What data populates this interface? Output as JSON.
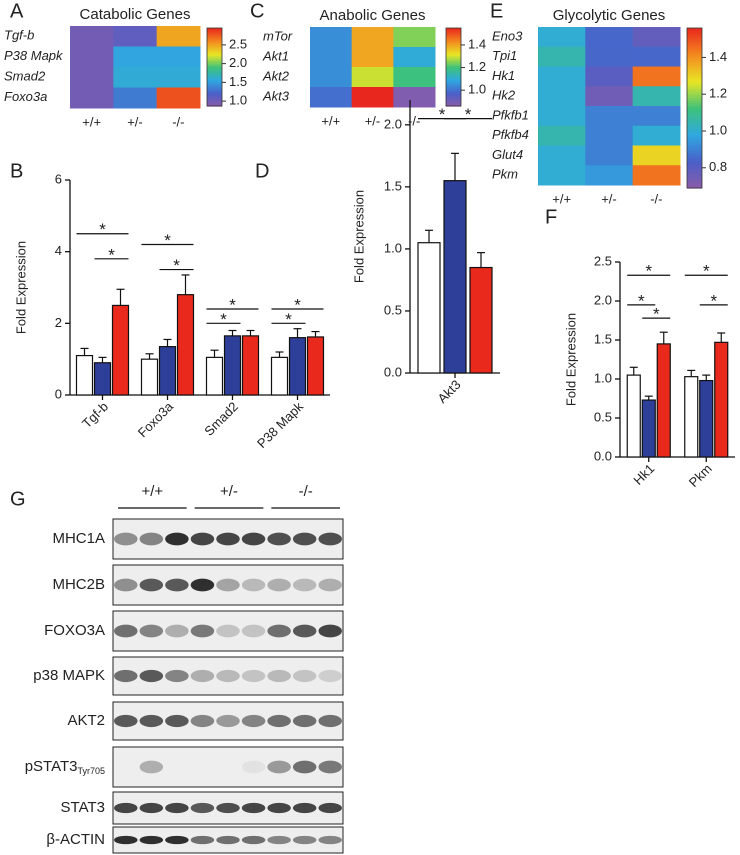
{
  "chart_data": [
    {
      "type": "heatmap",
      "label": "A",
      "title": "Catabolic Genes",
      "rows": [
        "Tgf-b",
        "P38 Mapk",
        "Smad2",
        "Foxo3a"
      ],
      "columns": [
        "+/+",
        "+/-",
        "-/-"
      ],
      "values": [
        [
          1.0,
          1.1,
          2.5
        ],
        [
          1.0,
          1.55,
          1.55
        ],
        [
          1.0,
          1.6,
          1.6
        ],
        [
          1.0,
          1.35,
          2.8
        ]
      ],
      "zlim": [
        0.87,
        2.95
      ],
      "zticks": [
        {
          "value": 1,
          "label": "1.0"
        },
        1.5,
        {
          "value": 2,
          "label": "2.0"
        },
        2.5
      ],
      "colorscale": [
        "#8b5ca8",
        "#4a5fc9",
        "#2fa8e0",
        "#3ec27a",
        "#e8e624",
        "#f48a1f",
        "#e8281e"
      ]
    },
    {
      "type": "heatmap",
      "label": "C",
      "title": "Anabolic Genes",
      "rows": [
        "mTor",
        "Akt1",
        "Akt2",
        "Akt3"
      ],
      "columns": [
        "+/+",
        "+/-",
        "-/-"
      ],
      "values": [
        [
          1.05,
          1.4,
          1.25
        ],
        [
          1.05,
          1.4,
          1.1
        ],
        [
          1.05,
          1.3,
          1.2
        ],
        [
          1.0,
          1.55,
          0.88
        ]
      ],
      "zlim": [
        0.86,
        1.55
      ],
      "zticks": [
        {
          "value": 1,
          "label": "1.0"
        },
        1.2,
        1.4
      ],
      "colorscale": [
        "#8b5ca8",
        "#4a5fc9",
        "#2fa8e0",
        "#3ec27a",
        "#e8e624",
        "#f48a1f",
        "#e8281e"
      ]
    },
    {
      "type": "heatmap",
      "label": "E",
      "title": "Glycolytic Genes",
      "rows": [
        "Eno3",
        "Tpi1",
        "Hk1",
        "Hk2",
        "Pfkfb1",
        "Pfkfb4",
        "Glut4",
        "Pkm"
      ],
      "columns": [
        "+/+",
        "+/-",
        "-/-"
      ],
      "values": [
        [
          1.0,
          0.85,
          0.78
        ],
        [
          1.05,
          0.85,
          0.85
        ],
        [
          1.0,
          0.8,
          1.45
        ],
        [
          1.0,
          0.75,
          1.05
        ],
        [
          1.0,
          0.9,
          0.9
        ],
        [
          1.05,
          0.9,
          1.0
        ],
        [
          1.0,
          0.9,
          1.3
        ],
        [
          1.0,
          0.95,
          1.45
        ]
      ],
      "zlim": [
        0.69,
        1.56
      ],
      "zticks": [
        0.8,
        {
          "value": 1,
          "label": "1.0"
        },
        1.2,
        1.4
      ],
      "colorscale": [
        "#8b5ca8",
        "#4a5fc9",
        "#2fa8e0",
        "#3ec27a",
        "#e8e624",
        "#f48a1f",
        "#e8281e"
      ]
    },
    {
      "type": "bar",
      "label": "B",
      "ylabel": "Fold Expression",
      "categories": [
        "Tgf-b",
        "Foxo3a",
        "Smad2",
        "P38 Mapk"
      ],
      "series": [
        {
          "color": "#ffffff",
          "values": [
            1.1,
            1.0,
            1.05,
            1.05
          ],
          "errors": [
            0.2,
            0.15,
            0.2,
            0.15
          ]
        },
        {
          "color": "#2e3f99",
          "values": [
            0.9,
            1.35,
            1.65,
            1.6
          ],
          "errors": [
            0.15,
            0.2,
            0.15,
            0.25
          ]
        },
        {
          "color": "#e8291c",
          "values": [
            2.5,
            2.8,
            1.65,
            1.62
          ],
          "errors": [
            0.45,
            0.55,
            0.15,
            0.15
          ]
        }
      ],
      "ylim": [
        0,
        6
      ],
      "yticks": [
        0,
        2,
        4,
        6
      ],
      "brackets": [
        {
          "category": 0,
          "from": 0,
          "to": 2,
          "y": 4.5,
          "label": "*"
        },
        {
          "category": 0,
          "from": 1,
          "to": 2,
          "y": 3.8,
          "label": "*"
        },
        {
          "category": 1,
          "from": 0,
          "to": 2,
          "y": 4.2,
          "label": "*"
        },
        {
          "category": 1,
          "from": 1,
          "to": 2,
          "y": 3.5,
          "label": "*"
        },
        {
          "category": 2,
          "from": 0,
          "to": 2,
          "y": 2.4,
          "label": "*"
        },
        {
          "category": 2,
          "from": 0,
          "to": 1,
          "y": 2.0,
          "label": "*"
        },
        {
          "category": 3,
          "from": 0,
          "to": 2,
          "y": 2.4,
          "label": "*"
        },
        {
          "category": 3,
          "from": 0,
          "to": 1,
          "y": 2.0,
          "label": "*"
        }
      ]
    },
    {
      "type": "bar",
      "label": "D",
      "ylabel": "Fold Expression",
      "categories": [
        "Akt3"
      ],
      "series": [
        {
          "color": "#ffffff",
          "values": [
            1.05
          ],
          "errors": [
            0.1
          ]
        },
        {
          "color": "#2e3f99",
          "values": [
            1.55
          ],
          "errors": [
            0.22
          ]
        },
        {
          "color": "#e8291c",
          "values": [
            0.85
          ],
          "errors": [
            0.12
          ]
        }
      ],
      "ylim": [
        0,
        2.2
      ],
      "yticks": [
        {
          "value": 0,
          "label": "0.0"
        },
        0.5,
        {
          "value": 1,
          "label": "1.0"
        },
        1.5,
        {
          "value": 2,
          "label": "2.0"
        }
      ],
      "brackets": [
        {
          "category": 0,
          "from": 0,
          "to": 1,
          "y": 2.05,
          "label": "*"
        },
        {
          "category": 0,
          "from": 1,
          "to": 2,
          "y": 2.05,
          "label": "*"
        }
      ]
    },
    {
      "type": "bar",
      "label": "F",
      "ylabel": "Fold Expression",
      "categories": [
        "Hk1",
        "Pkm"
      ],
      "series": [
        {
          "color": "#ffffff",
          "values": [
            1.05,
            1.03
          ],
          "errors": [
            0.1,
            0.08
          ]
        },
        {
          "color": "#2e3f99",
          "values": [
            0.73,
            0.98
          ],
          "errors": [
            0.05,
            0.07
          ]
        },
        {
          "color": "#e8291c",
          "values": [
            1.45,
            1.47
          ],
          "errors": [
            0.15,
            0.12
          ]
        }
      ],
      "ylim": [
        0,
        2.5
      ],
      "yticks": [
        {
          "value": 0,
          "label": "0.0"
        },
        0.5,
        {
          "value": 1,
          "label": "1.0"
        },
        1.5,
        {
          "value": 2,
          "label": "2.0"
        },
        2.5
      ],
      "brackets": [
        {
          "category": 0,
          "from": 0,
          "to": 2,
          "y": 2.33,
          "label": "*"
        },
        {
          "category": 0,
          "from": 0,
          "to": 1,
          "y": 1.95,
          "label": "*"
        },
        {
          "category": 0,
          "from": 1,
          "to": 2,
          "y": 1.78,
          "label": "*"
        },
        {
          "category": 1,
          "from": 0,
          "to": 2,
          "y": 2.33,
          "label": "*"
        },
        {
          "category": 1,
          "from": 1,
          "to": 2,
          "y": 1.95,
          "label": "*"
        }
      ]
    }
  ],
  "blot": {
    "label": "G",
    "groups": [
      "+/+",
      "+/-",
      "-/-"
    ],
    "rows": [
      {
        "name": "MHC1A"
      },
      {
        "name": "MHC2B"
      },
      {
        "name": "FOXO3A"
      },
      {
        "name": "p38 MAPK"
      },
      {
        "name": "AKT2"
      },
      {
        "name": "pSTAT3",
        "subscript": "Tyr705"
      },
      {
        "name": "STAT3"
      },
      {
        "name": "β-ACTIN"
      }
    ]
  }
}
